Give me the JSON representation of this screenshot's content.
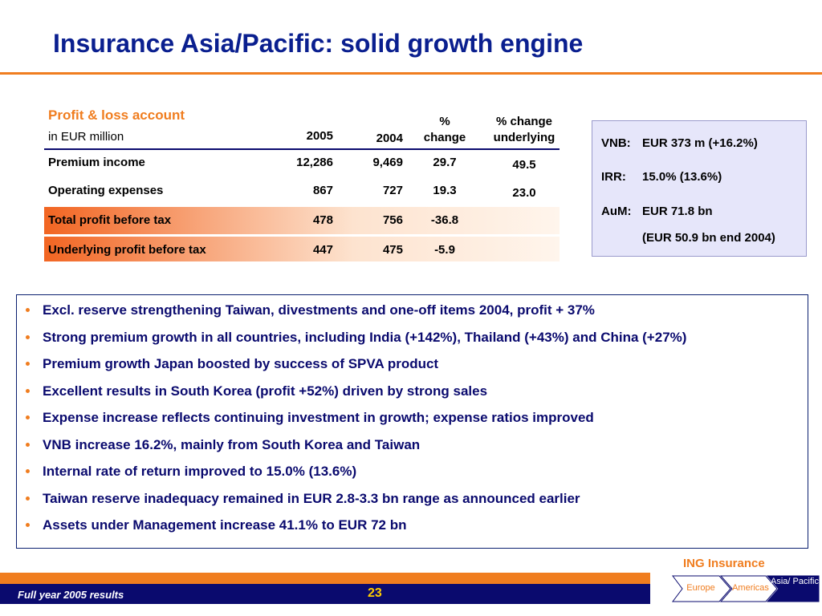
{
  "title": "Insurance Asia/Pacific: solid growth engine",
  "table": {
    "heading": "Profit & loss account",
    "unit": "in EUR million",
    "columns": [
      "2005",
      "2004",
      "% change",
      "% change underlying"
    ],
    "rows": [
      [
        "Premium income",
        "12,286",
        "9,469",
        "29.7",
        "49.5"
      ],
      [
        "Operating expenses",
        "867",
        "727",
        "19.3",
        "23.0"
      ],
      [
        "Total profit before tax",
        "478",
        "756",
        "-36.8"
      ],
      [
        "Underlying profit before tax",
        "447",
        "475",
        "-5.9"
      ]
    ]
  },
  "kpis": [
    {
      "label": "VNB:",
      "text": "EUR 373 m (+16.2%)"
    },
    {
      "label": "IRR:",
      "text": "15.0% (13.6%)"
    },
    {
      "label": "AuM:",
      "text": "EUR 71.8 bn",
      "note": "(EUR 50.9 bn end 2004)"
    }
  ],
  "bullets": [
    "Excl. reserve strengthening Taiwan, divestments and one-off items 2004, profit + 37%",
    "Strong premium growth in all countries, including India (+142%), Thailand (+43%) and China (+27%)",
    "Premium growth Japan boosted by success of SPVA product",
    "Excellent results in South Korea (profit +52%) driven by strong sales",
    "Expense increase reflects continuing investment in growth; expense ratios improved",
    "VNB increase 16.2%, mainly from South Korea and Taiwan",
    "Internal rate of return improved to 15.0% (13.6%)",
    "Taiwan reserve inadequacy remained in EUR 2.8-3.3 bn range as announced earlier",
    "Assets under Management increase 41.1% to EUR 72 bn"
  ],
  "footer": {
    "brand": "ING Insurance",
    "left": "Full year 2005 results",
    "page": "23",
    "nav": [
      "Europe",
      "Americas",
      "Asia/ Pacific"
    ]
  }
}
